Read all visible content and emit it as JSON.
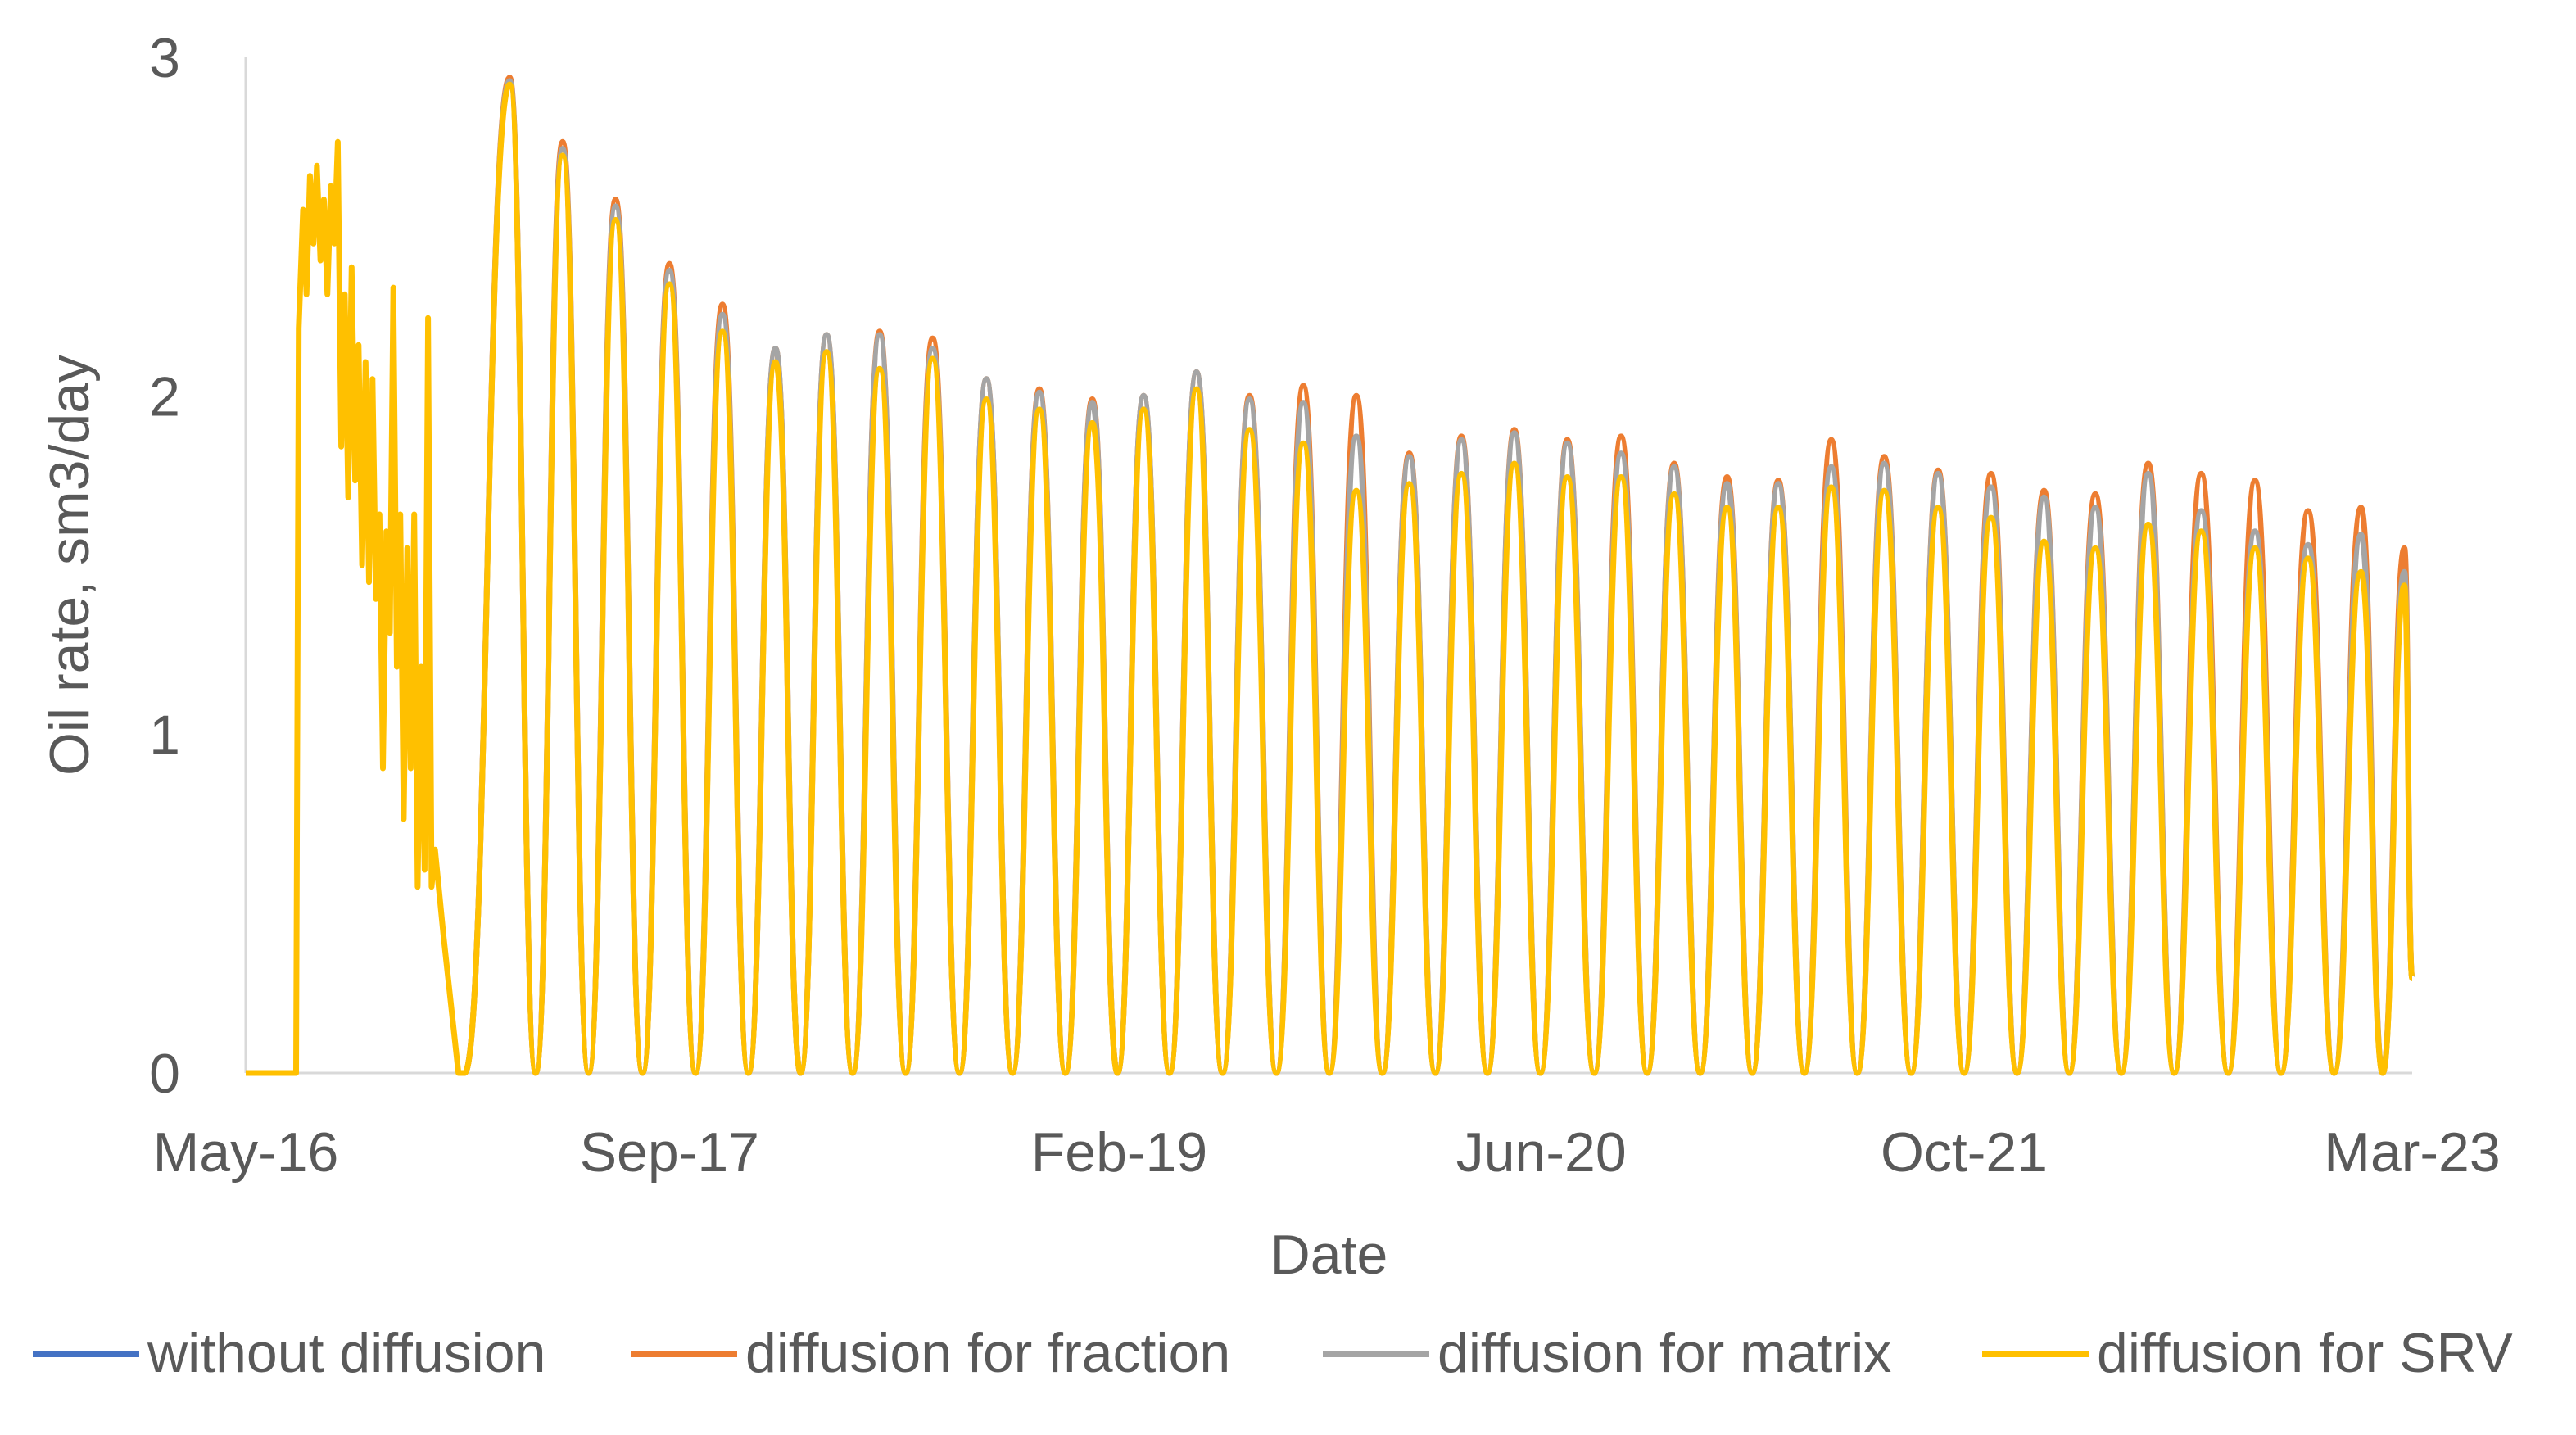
{
  "chart_data": {
    "type": "line",
    "xlabel": "Date",
    "ylabel": "Oil rate, sm3/day",
    "x_ticks": [
      "May-16",
      "Sep-17",
      "Feb-19",
      "Jun-20",
      "Oct-21",
      "Mar-23"
    ],
    "x_tick_dates": [
      "2016-05-01",
      "2017-09-01",
      "2019-02-01",
      "2020-06-01",
      "2021-10-01",
      "2023-03-01"
    ],
    "xlim": [
      "2016-05-01",
      "2023-03-01"
    ],
    "y_ticks": [
      0,
      1,
      2,
      3
    ],
    "ylim": [
      0,
      3
    ],
    "grid": false,
    "legend_position": "bottom",
    "series": [
      {
        "name": "without diffusion",
        "color": "#4472C4"
      },
      {
        "name": "diffusion for fraction",
        "color": "#ED7D31"
      },
      {
        "name": "diffusion for matrix",
        "color": "#A5A5A5"
      },
      {
        "name": "diffusion for SRV",
        "color": "#FFC000"
      }
    ],
    "cycle_peaks": [
      {
        "date": "2017-03-01",
        "fraction": 2.94,
        "matrix": 2.93,
        "srv": 2.92
      },
      {
        "date": "2017-05-01",
        "fraction": 2.75,
        "matrix": 2.73,
        "srv": 2.71
      },
      {
        "date": "2017-07-01",
        "fraction": 2.58,
        "matrix": 2.56,
        "srv": 2.52
      },
      {
        "date": "2017-09-01",
        "fraction": 2.39,
        "matrix": 2.37,
        "srv": 2.33
      },
      {
        "date": "2017-11-01",
        "fraction": 2.27,
        "matrix": 2.24,
        "srv": 2.19
      },
      {
        "date": "2018-01-01",
        "fraction": 2.14,
        "matrix": 2.14,
        "srv": 2.1
      },
      {
        "date": "2018-03-01",
        "fraction": 2.18,
        "matrix": 2.18,
        "srv": 2.13
      },
      {
        "date": "2018-05-01",
        "fraction": 2.19,
        "matrix": 2.18,
        "srv": 2.08
      },
      {
        "date": "2018-07-01",
        "fraction": 2.17,
        "matrix": 2.14,
        "srv": 2.11
      },
      {
        "date": "2018-09-01",
        "fraction": 2.05,
        "matrix": 2.05,
        "srv": 1.99
      },
      {
        "date": "2018-11-01",
        "fraction": 2.02,
        "matrix": 2.01,
        "srv": 1.96
      },
      {
        "date": "2019-01-01",
        "fraction": 1.99,
        "matrix": 1.98,
        "srv": 1.92
      },
      {
        "date": "2019-03-01",
        "fraction": 2.0,
        "matrix": 2.0,
        "srv": 1.96
      },
      {
        "date": "2019-05-01",
        "fraction": 2.07,
        "matrix": 2.07,
        "srv": 2.02
      },
      {
        "date": "2019-07-01",
        "fraction": 2.0,
        "matrix": 1.99,
        "srv": 1.9
      },
      {
        "date": "2019-09-01",
        "fraction": 2.03,
        "matrix": 1.98,
        "srv": 1.86
      },
      {
        "date": "2019-11-01",
        "fraction": 2.0,
        "matrix": 1.88,
        "srv": 1.72
      },
      {
        "date": "2020-01-01",
        "fraction": 1.83,
        "matrix": 1.82,
        "srv": 1.74
      },
      {
        "date": "2020-03-01",
        "fraction": 1.88,
        "matrix": 1.87,
        "srv": 1.77
      },
      {
        "date": "2020-05-01",
        "fraction": 1.9,
        "matrix": 1.89,
        "srv": 1.8
      },
      {
        "date": "2020-07-01",
        "fraction": 1.87,
        "matrix": 1.86,
        "srv": 1.76
      },
      {
        "date": "2020-09-01",
        "fraction": 1.88,
        "matrix": 1.83,
        "srv": 1.76
      },
      {
        "date": "2020-11-01",
        "fraction": 1.8,
        "matrix": 1.79,
        "srv": 1.71
      },
      {
        "date": "2021-01-01",
        "fraction": 1.76,
        "matrix": 1.74,
        "srv": 1.67
      },
      {
        "date": "2021-03-01",
        "fraction": 1.75,
        "matrix": 1.74,
        "srv": 1.67
      },
      {
        "date": "2021-05-01",
        "fraction": 1.87,
        "matrix": 1.79,
        "srv": 1.73
      },
      {
        "date": "2021-07-01",
        "fraction": 1.82,
        "matrix": 1.8,
        "srv": 1.72
      },
      {
        "date": "2021-09-01",
        "fraction": 1.78,
        "matrix": 1.77,
        "srv": 1.67
      },
      {
        "date": "2021-11-01",
        "fraction": 1.77,
        "matrix": 1.73,
        "srv": 1.64
      },
      {
        "date": "2022-01-01",
        "fraction": 1.72,
        "matrix": 1.7,
        "srv": 1.57
      },
      {
        "date": "2022-03-01",
        "fraction": 1.71,
        "matrix": 1.67,
        "srv": 1.55
      },
      {
        "date": "2022-05-01",
        "fraction": 1.8,
        "matrix": 1.77,
        "srv": 1.62
      },
      {
        "date": "2022-07-01",
        "fraction": 1.77,
        "matrix": 1.66,
        "srv": 1.6
      },
      {
        "date": "2022-09-01",
        "fraction": 1.75,
        "matrix": 1.6,
        "srv": 1.55
      },
      {
        "date": "2022-11-01",
        "fraction": 1.66,
        "matrix": 1.56,
        "srv": 1.52
      },
      {
        "date": "2023-01-01",
        "fraction": 1.67,
        "matrix": 1.59,
        "srv": 1.48
      },
      {
        "date": "2023-02-20",
        "fraction": 1.55,
        "matrix": 1.48,
        "srv": 1.44
      }
    ],
    "early_period_srv": [
      [
        "2016-05-01",
        0
      ],
      [
        "2016-06-28",
        0
      ],
      [
        "2016-07-01",
        2.2
      ],
      [
        "2016-07-06",
        2.55
      ],
      [
        "2016-07-10",
        2.3
      ],
      [
        "2016-07-14",
        2.65
      ],
      [
        "2016-07-18",
        2.45
      ],
      [
        "2016-07-22",
        2.68
      ],
      [
        "2016-07-26",
        2.4
      ],
      [
        "2016-07-30",
        2.58
      ],
      [
        "2016-08-03",
        2.3
      ],
      [
        "2016-08-07",
        2.62
      ],
      [
        "2016-08-11",
        2.45
      ],
      [
        "2016-08-15",
        2.75
      ],
      [
        "2016-08-19",
        1.85
      ],
      [
        "2016-08-23",
        2.3
      ],
      [
        "2016-08-27",
        1.7
      ],
      [
        "2016-08-31",
        2.38
      ],
      [
        "2016-09-04",
        1.75
      ],
      [
        "2016-09-08",
        2.15
      ],
      [
        "2016-09-12",
        1.5
      ],
      [
        "2016-09-16",
        2.1
      ],
      [
        "2016-09-20",
        1.45
      ],
      [
        "2016-09-24",
        2.05
      ],
      [
        "2016-09-28",
        1.4
      ],
      [
        "2016-10-02",
        1.65
      ],
      [
        "2016-10-06",
        0.9
      ],
      [
        "2016-10-10",
        1.6
      ],
      [
        "2016-10-14",
        1.3
      ],
      [
        "2016-10-18",
        2.32
      ],
      [
        "2016-10-22",
        1.2
      ],
      [
        "2016-10-26",
        1.65
      ],
      [
        "2016-10-30",
        0.75
      ],
      [
        "2016-11-03",
        1.55
      ],
      [
        "2016-11-07",
        0.9
      ],
      [
        "2016-11-11",
        1.65
      ],
      [
        "2016-11-15",
        0.55
      ],
      [
        "2016-11-19",
        1.2
      ],
      [
        "2016-11-23",
        0.6
      ],
      [
        "2016-11-27",
        2.23
      ],
      [
        "2016-12-01",
        0.55
      ],
      [
        "2016-12-05",
        0.66
      ],
      [
        "2016-12-15",
        0.4
      ],
      [
        "2017-01-01",
        0.0
      ],
      [
        "2017-01-08",
        0.0
      ]
    ],
    "final_point": [
      "2023-03-01",
      0.28
    ]
  }
}
